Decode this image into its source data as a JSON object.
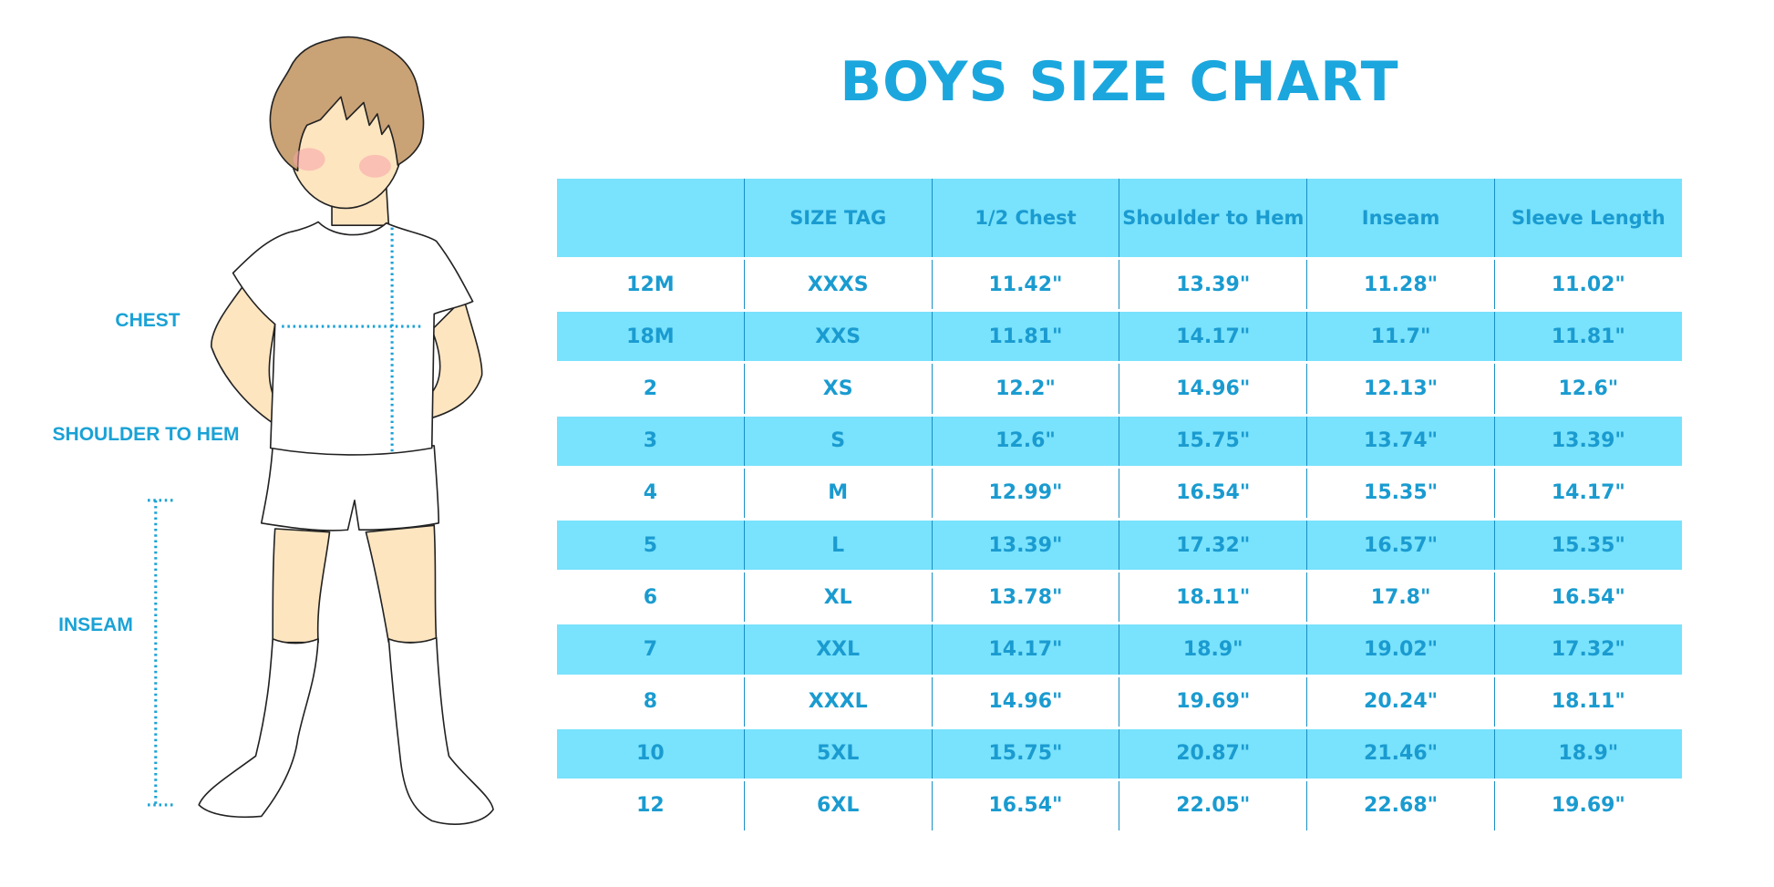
{
  "title": "BOYS SIZE CHART",
  "figure_labels": {
    "chest": "CHEST",
    "shoulder_to_hem": "SHOULDER TO HEM",
    "inseam": "INSEAM"
  },
  "colors": {
    "accent": "#1ba7de",
    "row_highlight": "#79e2fc",
    "text": "#1a9bd0"
  },
  "table": {
    "headers": [
      "",
      "SIZE TAG",
      "1/2 Chest",
      "Shoulder to Hem",
      "Inseam",
      "Sleeve Length"
    ],
    "rows": [
      [
        "12M",
        "XXXS",
        "11.42\"",
        "13.39\"",
        "11.28\"",
        "11.02\""
      ],
      [
        "18M",
        "XXS",
        "11.81\"",
        "14.17\"",
        "11.7\"",
        "11.81\""
      ],
      [
        "2",
        "XS",
        "12.2\"",
        "14.96\"",
        "12.13\"",
        "12.6\""
      ],
      [
        "3",
        "S",
        "12.6\"",
        "15.75\"",
        "13.74\"",
        "13.39\""
      ],
      [
        "4",
        "M",
        "12.99\"",
        "16.54\"",
        "15.35\"",
        "14.17\""
      ],
      [
        "5",
        "L",
        "13.39\"",
        "17.32\"",
        "16.57\"",
        "15.35\""
      ],
      [
        "6",
        "XL",
        "13.78\"",
        "18.11\"",
        "17.8\"",
        "16.54\""
      ],
      [
        "7",
        "XXL",
        "14.17\"",
        "18.9\"",
        "19.02\"",
        "17.32\""
      ],
      [
        "8",
        "XXXL",
        "14.96\"",
        "19.69\"",
        "20.24\"",
        "18.11\""
      ],
      [
        "10",
        "5XL",
        "15.75\"",
        "20.87\"",
        "21.46\"",
        "18.9\""
      ],
      [
        "12",
        "6XL",
        "16.54\"",
        "22.05\"",
        "22.68\"",
        "19.69\""
      ]
    ]
  }
}
